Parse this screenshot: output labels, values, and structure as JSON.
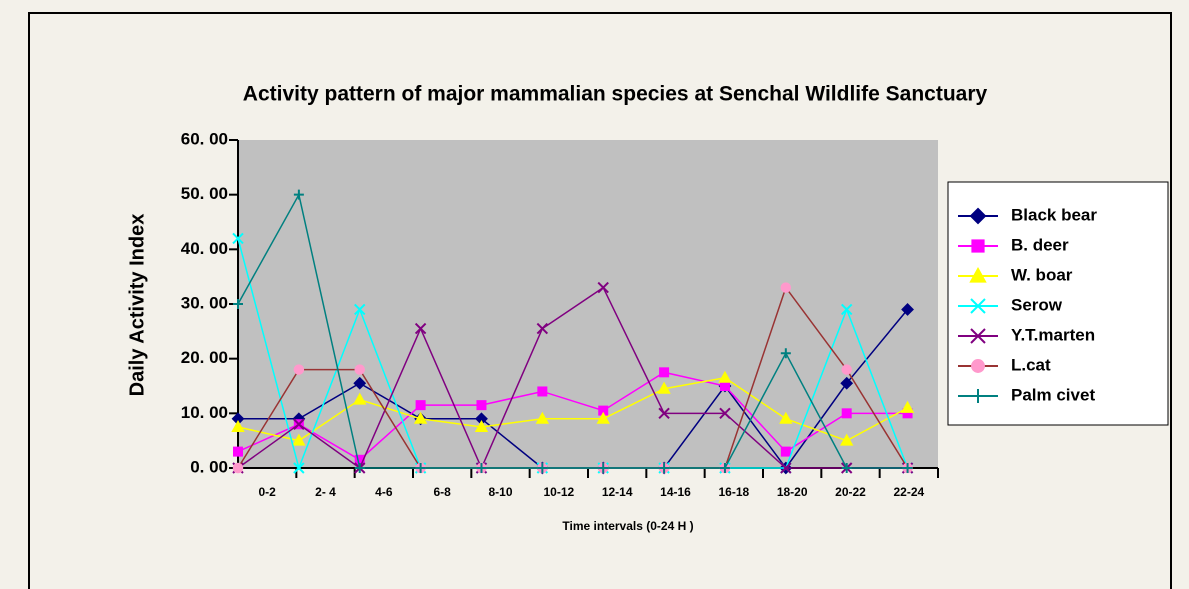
{
  "chart_data": {
    "type": "line",
    "title": "Activity pattern of major mammalian species at Senchal Wildlife Sanctuary",
    "y_label": "Daily Activity Index",
    "x_label": "Time intervals (0-24 H )",
    "categories": [
      "0-2",
      "2- 4",
      "4-6",
      "6-8",
      "8-10",
      "10-12",
      "12-14",
      "14-16",
      "16-18",
      "18-20",
      "20-22",
      "22-24"
    ],
    "ylim": [
      0,
      60
    ],
    "yticks": [
      {
        "value": 0,
        "label": "0. 00"
      },
      {
        "value": 10,
        "label": "10. 00"
      },
      {
        "value": 20,
        "label": "20. 00"
      },
      {
        "value": 30,
        "label": "30. 00"
      },
      {
        "value": 40,
        "label": "40. 00"
      },
      {
        "value": 50,
        "label": "50. 00"
      },
      {
        "value": 60,
        "label": "60. 00"
      }
    ],
    "series": [
      {
        "name": "Black bear",
        "color": "#000080",
        "marker_color": "#000080",
        "marker": "diamond",
        "values": [
          9,
          9,
          15.5,
          9,
          9,
          0,
          0,
          0,
          15,
          0,
          15.5,
          29
        ]
      },
      {
        "name": "B. deer",
        "color": "#ff00ff",
        "marker_color": "#ff00ff",
        "marker": "square",
        "values": [
          3,
          8,
          1.5,
          11.5,
          11.5,
          14,
          10.5,
          17.5,
          15,
          3,
          10,
          10
        ]
      },
      {
        "name": "W. boar",
        "color": "#ffff00",
        "marker_color": "#ffff00",
        "marker": "triangle",
        "values": [
          7.5,
          5,
          12.5,
          9,
          7.5,
          9,
          9,
          14.5,
          16.5,
          9,
          5,
          11
        ]
      },
      {
        "name": "Serow",
        "color": "#00ffff",
        "marker_color": "#00ffff",
        "marker": "x",
        "values": [
          42,
          0,
          29,
          0,
          0,
          0,
          0,
          0,
          0,
          0,
          29,
          0
        ]
      },
      {
        "name": "Y.T.marten",
        "color": "#800080",
        "marker_color": "#800080",
        "marker": "x",
        "values": [
          0,
          8,
          0,
          25.5,
          0,
          25.5,
          33,
          10,
          10,
          0,
          0,
          0
        ]
      },
      {
        "name": "L.cat",
        "color": "#993333",
        "marker_color": "#ff99cc",
        "marker": "circle",
        "values": [
          0,
          18,
          18,
          0,
          0,
          0,
          0,
          0,
          0,
          33,
          18,
          0
        ]
      },
      {
        "name": "Palm civet",
        "color": "#008080",
        "marker_color": "#008080",
        "marker": "plus",
        "values": [
          30,
          50,
          0,
          0,
          0,
          0,
          0,
          0,
          0,
          21,
          0,
          0
        ]
      }
    ]
  }
}
